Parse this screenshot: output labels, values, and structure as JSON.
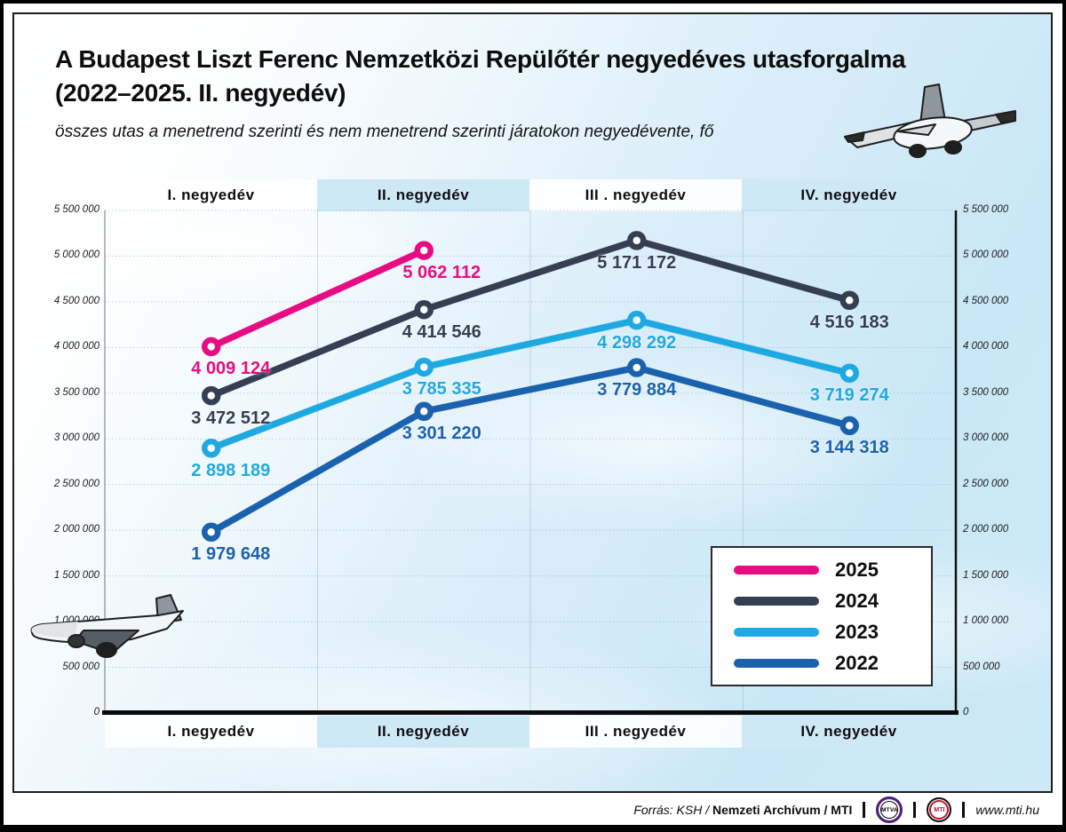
{
  "header": {
    "title_line1": "A Budapest Liszt Ferenc Nemzetközi Repülőtér negyedéves utasforgalma",
    "title_line2": "(2022–2025. II. negyedév)",
    "subtitle": "összes utas a menetrend szerinti és nem menetrend szerinti járatokon negyedévente, fő"
  },
  "chart_data": {
    "type": "line",
    "categories": [
      "I. negyedév",
      "II. negyedév",
      "III . negyedév",
      "IV. negyedév"
    ],
    "series": [
      {
        "name": "2025",
        "color": "#e80c84",
        "values": [
          4009124,
          5062112
        ],
        "labels": [
          "4 009 124",
          "5 062 112"
        ]
      },
      {
        "name": "2024",
        "color": "#353e53",
        "values": [
          3472512,
          4414546,
          5171172,
          4516183
        ],
        "labels": [
          "3 472 512",
          "4 414 546",
          "5 171 172",
          "4 516 183"
        ]
      },
      {
        "name": "2023",
        "color": "#1fa9e2",
        "values": [
          2898189,
          3785335,
          4298292,
          3719274
        ],
        "labels": [
          "2 898 189",
          "3 785 335",
          "4 298 292",
          "3 719 274"
        ]
      },
      {
        "name": "2022",
        "color": "#1a62ae",
        "values": [
          1979648,
          3301220,
          3779884,
          3144318
        ],
        "labels": [
          "1 979 648",
          "3 301 220",
          "3 779 884",
          "3 144 318"
        ]
      }
    ],
    "ylim": [
      0,
      5500000
    ],
    "ytick_step": 500000,
    "ytick_labels": [
      "0",
      "500 000",
      "1 000 000",
      "1 500 000",
      "2 000 000",
      "2 500 000",
      "3 000 000",
      "3 500 000",
      "4 000 000",
      "4 500 000",
      "5 000 000",
      "5 500 000"
    ],
    "grid": true,
    "legend_position": "inside-bottom-right",
    "band_colors": [
      "#ffffff",
      "#cfe8f6"
    ]
  },
  "footer": {
    "source_italic": "Forrás: KSH /",
    "source_bold": "Nemzeti Archívum / MTI",
    "logo_mtva": "MTVA",
    "logo_mti": "MTI",
    "website": "www.mti.hu"
  }
}
